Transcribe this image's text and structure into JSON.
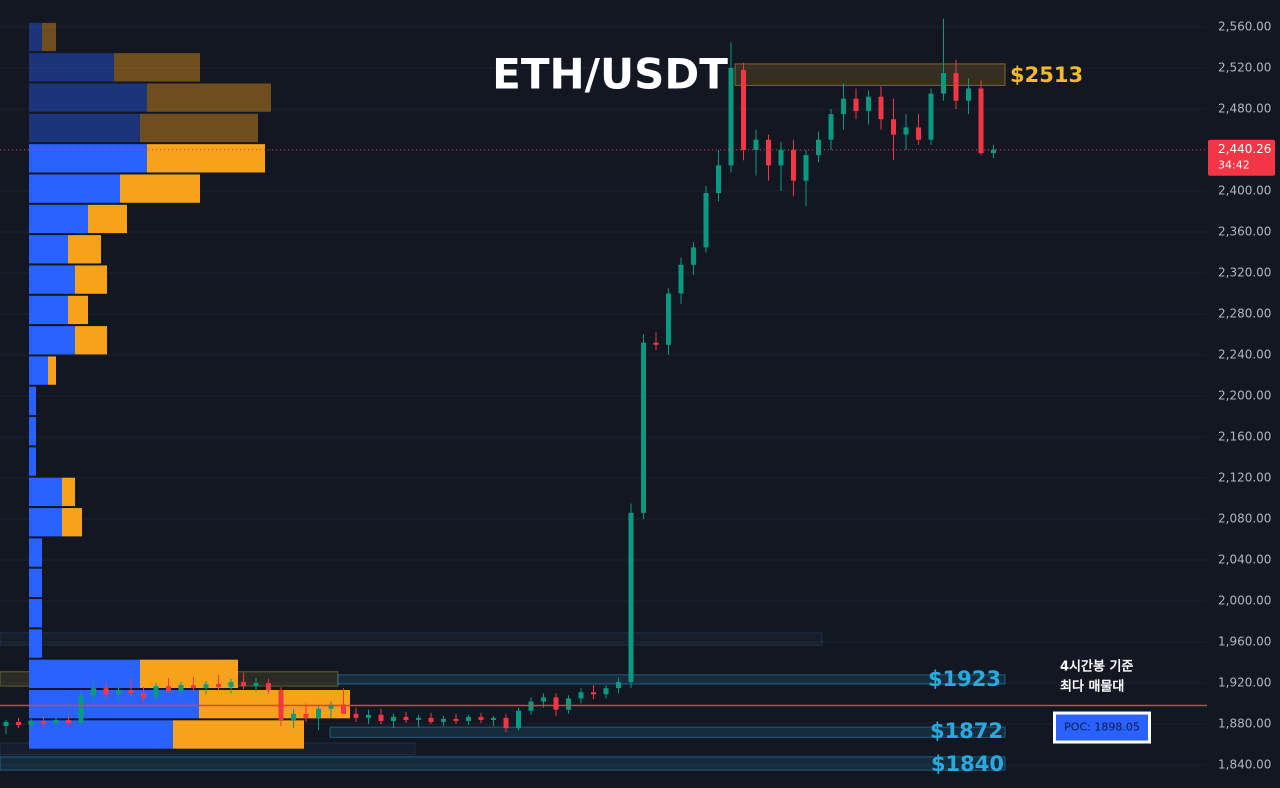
{
  "chart_data": {
    "type": "candlestick",
    "title": "ETH/USDT",
    "ylim": [
      1817.6,
      2586.3
    ],
    "yticks": [
      {
        "value": 2560,
        "label": "2,560.00"
      },
      {
        "value": 2520,
        "label": "2,520.00"
      },
      {
        "value": 2480,
        "label": "2,480.00"
      },
      {
        "value": 2440,
        "label": "2,440.00"
      },
      {
        "value": 2400,
        "label": "2,400.00"
      },
      {
        "value": 2360,
        "label": "2,360.00"
      },
      {
        "value": 2320,
        "label": "2,320.00"
      },
      {
        "value": 2280,
        "label": "2,280.00"
      },
      {
        "value": 2240,
        "label": "2,240.00"
      },
      {
        "value": 2200,
        "label": "2,200.00"
      },
      {
        "value": 2160,
        "label": "2,160.00"
      },
      {
        "value": 2120,
        "label": "2,120.00"
      },
      {
        "value": 2080,
        "label": "2,080.00"
      },
      {
        "value": 2040,
        "label": "2,040.00"
      },
      {
        "value": 2000,
        "label": "2,000.00"
      },
      {
        "value": 1960,
        "label": "1,960.00"
      },
      {
        "value": 1920,
        "label": "1,920.00"
      },
      {
        "value": 1880,
        "label": "1,880.00"
      },
      {
        "value": 1840,
        "label": "1,840.00"
      }
    ],
    "grid": true,
    "up_color": "#089981",
    "down_color": "#f23645",
    "candles": {
      "open": [
        1878,
        1882,
        1879,
        1883,
        1880,
        1884,
        1881,
        1908,
        1915,
        1909,
        1913,
        1910,
        1906,
        1917,
        1912,
        1918,
        1915,
        1919,
        1916,
        1921,
        1917,
        1920,
        1913,
        1884,
        1890,
        1886,
        1895,
        1899,
        1890,
        1886,
        1889,
        1883,
        1887,
        1884,
        1886,
        1882,
        1885,
        1883,
        1887,
        1884,
        1886,
        1876,
        1893,
        1902,
        1906,
        1894,
        1905,
        1911,
        1909,
        1915,
        1921,
        2086,
        2252,
        2250,
        2300,
        2328,
        2345,
        2398,
        2425,
        2518,
        2440,
        2450,
        2425,
        2440,
        2410,
        2435,
        2450,
        2475,
        2490,
        2478,
        2492,
        2470,
        2455,
        2462,
        2450,
        2495,
        2515,
        2488,
        2500,
        2437
      ],
      "high": [
        1884,
        1886,
        1885,
        1888,
        1886,
        1890,
        1912,
        1922,
        1920,
        1918,
        1924,
        1916,
        1920,
        1925,
        1921,
        1926,
        1922,
        1928,
        1924,
        1930,
        1925,
        1924,
        1916,
        1895,
        1900,
        1898,
        1902,
        1915,
        1896,
        1894,
        1895,
        1890,
        1892,
        1889,
        1891,
        1888,
        1890,
        1889,
        1891,
        1888,
        1890,
        1896,
        1906,
        1910,
        1910,
        1908,
        1915,
        1918,
        1918,
        1925,
        2095,
        2260,
        2262,
        2305,
        2335,
        2350,
        2405,
        2440,
        2545,
        2525,
        2460,
        2455,
        2448,
        2450,
        2440,
        2458,
        2480,
        2505,
        2500,
        2498,
        2502,
        2490,
        2475,
        2475,
        2500,
        2568,
        2528,
        2510,
        2508,
        2445
      ],
      "low": [
        1870,
        1876,
        1874,
        1877,
        1875,
        1879,
        1879,
        1902,
        1905,
        1903,
        1908,
        1900,
        1903,
        1910,
        1906,
        1912,
        1909,
        1913,
        1910,
        1914,
        1912,
        1910,
        1878,
        1876,
        1882,
        1874,
        1886,
        1890,
        1882,
        1880,
        1880,
        1876,
        1881,
        1877,
        1880,
        1878,
        1880,
        1879,
        1881,
        1878,
        1872,
        1874,
        1889,
        1896,
        1888,
        1890,
        1900,
        1904,
        1905,
        1910,
        1915,
        2080,
        2245,
        2240,
        2290,
        2318,
        2340,
        2390,
        2418,
        2430,
        2415,
        2410,
        2400,
        2395,
        2385,
        2428,
        2440,
        2460,
        2470,
        2465,
        2460,
        2430,
        2440,
        2445,
        2445,
        2488,
        2480,
        2475,
        2435,
        2432
      ],
      "close": [
        1882,
        1879,
        1883,
        1880,
        1884,
        1881,
        1908,
        1915,
        1909,
        1913,
        1910,
        1906,
        1917,
        1912,
        1918,
        1915,
        1919,
        1916,
        1921,
        1917,
        1920,
        1913,
        1884,
        1890,
        1886,
        1895,
        1899,
        1890,
        1886,
        1889,
        1883,
        1887,
        1884,
        1886,
        1882,
        1885,
        1883,
        1887,
        1884,
        1886,
        1876,
        1893,
        1902,
        1906,
        1894,
        1905,
        1911,
        1909,
        1915,
        1921,
        2086,
        2252,
        2250,
        2300,
        2328,
        2345,
        2398,
        2425,
        2520,
        2440,
        2450,
        2425,
        2440,
        2410,
        2435,
        2450,
        2475,
        2490,
        2478,
        2492,
        2470,
        2455,
        2462,
        2450,
        2495,
        2515,
        2488,
        2500,
        2437,
        2440.26
      ]
    },
    "volume_profile": {
      "low": 1855,
      "high": 2565,
      "up_color": "#2962ff",
      "down_color": "#f7a21b",
      "up": [
        13,
        85,
        118,
        111,
        118,
        91,
        59,
        39,
        46,
        39,
        46,
        19,
        7,
        7,
        7,
        33,
        33,
        13,
        13,
        13,
        13,
        111,
        170,
        144
      ],
      "down": [
        14,
        86,
        124,
        118,
        118,
        80,
        39,
        33,
        32,
        20,
        32,
        8,
        0,
        0,
        0,
        13,
        20,
        0,
        0,
        0,
        0,
        98,
        151,
        131
      ],
      "in_value_area": [
        false,
        false,
        false,
        false,
        true,
        true,
        true,
        true,
        true,
        true,
        true,
        true,
        true,
        true,
        true,
        true,
        true,
        true,
        true,
        true,
        true,
        true,
        true,
        true
      ]
    },
    "zones": [
      {
        "value": 2513,
        "label": "$2513",
        "low": 2503,
        "high": 2524,
        "color": "#f5b82e"
      },
      {
        "low": 1957,
        "high": 1969,
        "color": "#2a4a70"
      },
      {
        "low": 1917,
        "high": 1931,
        "color": "#b4aa3c"
      },
      {
        "value": 1923,
        "label": "$1923",
        "low": 1919,
        "high": 1928,
        "color": "#29a9e0"
      },
      {
        "value": 1872,
        "label": "$1872",
        "low": 1867,
        "high": 1877,
        "color": "#29a9e0"
      },
      {
        "low": 1850,
        "high": 1861.5,
        "color": "#2a4a70"
      },
      {
        "value": 1840,
        "label": "$1840",
        "low": 1835,
        "high": 1848,
        "color": "#29a9e0"
      }
    ],
    "poc": {
      "value": 1898.05,
      "label": "POC: 1898.05",
      "color": "#f23645"
    },
    "annotation": [
      "4시간봉 기준",
      "최다 매물대"
    ],
    "price_label": {
      "value": 2440.26,
      "label": "2,440.26"
    },
    "countdown": "34:42"
  }
}
